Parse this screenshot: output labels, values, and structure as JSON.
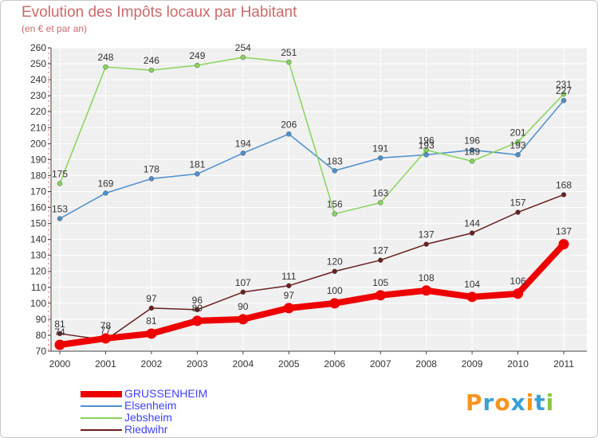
{
  "header": {
    "title": "Evolution des Impôts locaux par Habitant",
    "subtitle": "(en € et par an)"
  },
  "logo": {
    "text": "Proxiti",
    "letter_colors": [
      "#f7941d",
      "#3aa0d8",
      "#f7941d",
      "#3aa0d8",
      "#f7941d",
      "#3aa0d8",
      "#8cc63f"
    ]
  },
  "colors": {
    "title": "#cc6a6a",
    "legend_text": "#4040ff",
    "plot_background": "#f0f0f0",
    "grid": "#ffffff",
    "axis": "#444444"
  },
  "chart_data": {
    "type": "line",
    "title": "Evolution des Impôts locaux par Habitant",
    "subtitle": "(en € et par an)",
    "x": [
      "2000",
      "2001",
      "2002",
      "2003",
      "2004",
      "2005",
      "2006",
      "2007",
      "2008",
      "2009",
      "2010",
      "2011"
    ],
    "ylim": [
      70,
      260
    ],
    "ytick_step": 10,
    "grid": true,
    "legend_position": "bottom-left",
    "series": [
      {
        "name": "GRUSSENHEIM",
        "color": "#ee0000",
        "emphasis": true,
        "values": [
          74,
          78,
          81,
          89,
          90,
          97,
          100,
          105,
          108,
          104,
          106,
          137
        ],
        "labels": [
          "74",
          "78",
          "81",
          "89",
          "90",
          "97",
          "100",
          "105",
          "108",
          "104",
          "106",
          "137"
        ]
      },
      {
        "name": "Elsenheim",
        "color": "#4d8fcc",
        "emphasis": false,
        "values": [
          153,
          169,
          178,
          181,
          194,
          206,
          183,
          191,
          193,
          196,
          193,
          227
        ],
        "labels": [
          "153",
          "169",
          "178",
          "181",
          "194",
          "206",
          "183",
          "191",
          "193",
          "196",
          "193",
          "227"
        ]
      },
      {
        "name": "Jebsheim",
        "color": "#88d45a",
        "emphasis": false,
        "values": [
          175,
          248,
          246,
          249,
          254,
          251,
          156,
          163,
          196,
          189,
          201,
          231
        ],
        "labels": [
          "175",
          "248",
          "246",
          "249",
          "254",
          "251",
          "156",
          "163",
          "196",
          "189",
          "201",
          "231"
        ]
      },
      {
        "name": "Riedwihr",
        "color": "#6b1f1f",
        "emphasis": false,
        "values": [
          81,
          77,
          97,
          96,
          107,
          111,
          120,
          127,
          137,
          144,
          157,
          168
        ],
        "labels": [
          "81",
          "77",
          "97",
          "96",
          "107",
          "111",
          "120",
          "127",
          "137",
          "144",
          "157",
          "168"
        ]
      }
    ]
  }
}
